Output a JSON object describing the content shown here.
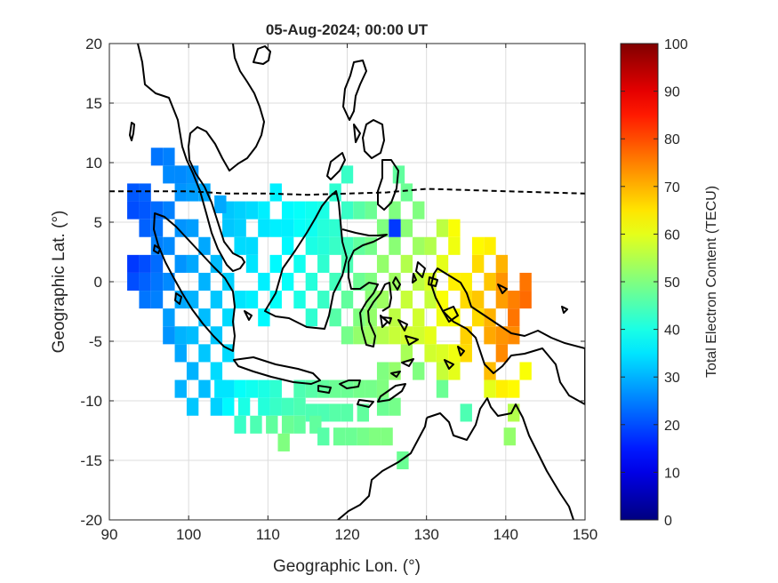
{
  "chart_data": {
    "type": "heatmap",
    "title": "05-Aug-2024; 00:00 UT",
    "xlabel": "Geographic Lon. (°)",
    "ylabel": "Geographic Lat. (°)",
    "xlim": [
      90,
      150
    ],
    "ylim": [
      -20,
      20
    ],
    "xticks": [
      90,
      100,
      110,
      120,
      130,
      140,
      150
    ],
    "yticks": [
      20,
      15,
      10,
      5,
      0,
      -5,
      -10,
      -15,
      -20
    ],
    "grid": true,
    "colorbar": {
      "label": "Total Electron Content (TECU)",
      "range": [
        0,
        100
      ],
      "ticks": [
        0,
        10,
        20,
        30,
        40,
        50,
        60,
        70,
        80,
        90,
        100
      ],
      "colormap": "jet"
    },
    "magnetic_equator": {
      "style": "dashed",
      "points": [
        [
          90,
          7.6
        ],
        [
          100,
          7.6
        ],
        [
          105,
          7.4
        ],
        [
          110,
          7.4
        ],
        [
          115,
          7.3
        ],
        [
          120,
          7.4
        ],
        [
          125,
          7.5
        ],
        [
          130,
          7.8
        ],
        [
          135,
          7.7
        ],
        [
          140,
          7.6
        ],
        [
          145,
          7.5
        ],
        [
          150,
          7.4
        ]
      ]
    },
    "cell_size_deg": [
      1.5,
      1.5
    ],
    "values": [
      [
        93,
        7.5,
        21
      ],
      [
        93,
        6,
        20
      ],
      [
        94.5,
        7.5,
        22
      ],
      [
        94.5,
        6,
        21
      ],
      [
        94.5,
        4.5,
        22
      ],
      [
        96,
        6,
        23
      ],
      [
        96,
        4.5,
        24
      ],
      [
        96,
        3,
        25
      ],
      [
        93,
        1.5,
        18
      ],
      [
        93,
        0,
        20
      ],
      [
        94.5,
        1.5,
        20
      ],
      [
        94.5,
        0,
        22
      ],
      [
        94.5,
        -1.5,
        24
      ],
      [
        96,
        1.5,
        23
      ],
      [
        96,
        0,
        24
      ],
      [
        96,
        -1.5,
        25
      ],
      [
        96,
        10.5,
        24
      ],
      [
        97.5,
        10.5,
        25
      ],
      [
        97.5,
        9,
        26
      ],
      [
        99,
        9,
        26
      ],
      [
        99,
        7.5,
        27
      ],
      [
        100.5,
        9,
        27
      ],
      [
        100.5,
        7.5,
        28
      ],
      [
        102,
        7.5,
        29
      ],
      [
        97.5,
        6,
        25
      ],
      [
        97.5,
        3,
        26
      ],
      [
        97.5,
        0,
        26
      ],
      [
        97.5,
        -3,
        28
      ],
      [
        99,
        4.5,
        27
      ],
      [
        99,
        1.5,
        27
      ],
      [
        99,
        -1.5,
        29
      ],
      [
        99,
        -4.5,
        30
      ],
      [
        100.5,
        4.5,
        28
      ],
      [
        100.5,
        1.5,
        29
      ],
      [
        100.5,
        -1.5,
        30
      ],
      [
        100.5,
        -4.5,
        31
      ],
      [
        102,
        3,
        29
      ],
      [
        102,
        0,
        30
      ],
      [
        102,
        -3,
        31
      ],
      [
        102,
        -6,
        32
      ],
      [
        103.5,
        1.5,
        31
      ],
      [
        103.5,
        -1.5,
        32
      ],
      [
        103.5,
        -4.5,
        32
      ],
      [
        103.5,
        -7.5,
        34
      ],
      [
        105,
        0,
        33
      ],
      [
        105,
        -3,
        34
      ],
      [
        105,
        -6,
        34
      ],
      [
        105,
        -9,
        35
      ],
      [
        97.5,
        -4.5,
        27
      ],
      [
        99,
        -6,
        29
      ],
      [
        100.5,
        -7.5,
        30
      ],
      [
        102,
        -9,
        31
      ],
      [
        103.5,
        -10.5,
        33
      ],
      [
        100.5,
        -10.5,
        32
      ],
      [
        99,
        -9,
        30
      ],
      [
        106.5,
        -1.5,
        35
      ],
      [
        108,
        -1.5,
        36
      ],
      [
        108,
        1.5,
        35
      ],
      [
        109.5,
        0,
        36
      ],
      [
        109.5,
        -3,
        37
      ],
      [
        111,
        1.5,
        37
      ],
      [
        111,
        -1.5,
        38
      ],
      [
        112.5,
        0,
        38
      ],
      [
        106.5,
        -9,
        38
      ],
      [
        108,
        -9,
        39
      ],
      [
        109.5,
        -9,
        40
      ],
      [
        109.5,
        -10.5,
        41
      ],
      [
        111,
        -9,
        42
      ],
      [
        111,
        -10.5,
        43
      ],
      [
        112.5,
        -10.5,
        44
      ],
      [
        114,
        -10.5,
        45
      ],
      [
        106.5,
        6,
        33
      ],
      [
        108,
        6,
        34
      ],
      [
        106.5,
        3,
        34
      ],
      [
        109.5,
        6,
        36
      ],
      [
        111,
        4.5,
        36
      ],
      [
        112.5,
        3,
        37
      ],
      [
        111,
        7.5,
        36
      ],
      [
        112.5,
        6,
        37
      ],
      [
        114,
        1.5,
        39
      ],
      [
        114,
        -1.5,
        40
      ],
      [
        114,
        4.5,
        38
      ],
      [
        115.5,
        3,
        40
      ],
      [
        115.5,
        0,
        41
      ],
      [
        115.5,
        -3,
        42
      ],
      [
        117,
        1.5,
        42
      ],
      [
        117,
        -1.5,
        43
      ],
      [
        114,
        -9,
        45
      ],
      [
        115.5,
        -9,
        46
      ],
      [
        117,
        -9,
        47
      ],
      [
        118.5,
        -9,
        48
      ],
      [
        120,
        -9,
        48
      ],
      [
        121.5,
        -9,
        49
      ],
      [
        123,
        -9,
        49
      ],
      [
        124.5,
        -9,
        50
      ],
      [
        117,
        4.5,
        41
      ],
      [
        118.5,
        3,
        43
      ],
      [
        118.5,
        0,
        44
      ],
      [
        118.5,
        -3,
        46
      ],
      [
        120,
        6,
        43
      ],
      [
        120,
        1.5,
        45
      ],
      [
        120,
        -1.5,
        47
      ],
      [
        120,
        -4.5,
        49
      ],
      [
        118.5,
        7.5,
        42
      ],
      [
        120,
        9,
        43
      ],
      [
        121.5,
        6,
        46
      ],
      [
        121.5,
        3,
        47
      ],
      [
        121.5,
        0,
        48
      ],
      [
        121.5,
        -3,
        50
      ],
      [
        121.5,
        -4.5,
        52
      ],
      [
        123,
        -4.5,
        53
      ],
      [
        123,
        6,
        48
      ],
      [
        123,
        3,
        49
      ],
      [
        123,
        0,
        50
      ],
      [
        123,
        -1.5,
        51
      ],
      [
        124.5,
        4.5,
        50
      ],
      [
        124.5,
        1.5,
        52
      ],
      [
        124.5,
        -1.5,
        53
      ],
      [
        124.5,
        -4.5,
        55
      ],
      [
        126,
        6,
        50
      ],
      [
        126,
        3,
        51
      ],
      [
        126,
        0,
        53
      ],
      [
        126,
        -3,
        56
      ],
      [
        127.5,
        4.5,
        51
      ],
      [
        127.5,
        1.5,
        55
      ],
      [
        127.5,
        -1.5,
        57
      ],
      [
        127.5,
        -4.5,
        58
      ],
      [
        126,
        4.5,
        18
      ],
      [
        126.5,
        9,
        47
      ],
      [
        127.5,
        7.5,
        48
      ],
      [
        129,
        6,
        50
      ],
      [
        129,
        3,
        53
      ],
      [
        129,
        0,
        56
      ],
      [
        129,
        -3,
        58
      ],
      [
        130.5,
        3,
        55
      ],
      [
        130.5,
        0,
        59
      ],
      [
        130.5,
        -1.5,
        57
      ],
      [
        130.5,
        -4.5,
        60
      ],
      [
        132,
        4.5,
        56
      ],
      [
        132,
        1.5,
        60
      ],
      [
        132,
        -1.5,
        62
      ],
      [
        132,
        -3,
        61
      ],
      [
        133.5,
        0,
        64
      ],
      [
        133.5,
        -3,
        62
      ],
      [
        133.5,
        3,
        61
      ],
      [
        133.5,
        4.5,
        62
      ],
      [
        135,
        0,
        64
      ],
      [
        135,
        -1.5,
        66
      ],
      [
        135,
        -4.5,
        67
      ],
      [
        135,
        -6,
        66
      ],
      [
        136.5,
        -1.5,
        68
      ],
      [
        136.5,
        -3,
        66
      ],
      [
        136.5,
        3,
        63
      ],
      [
        136.5,
        1.5,
        66
      ],
      [
        138,
        0,
        68
      ],
      [
        138,
        -3,
        70
      ],
      [
        138,
        -4.5,
        71
      ],
      [
        138,
        -7.5,
        69
      ],
      [
        139.5,
        0,
        73
      ],
      [
        139.5,
        -1.5,
        72
      ],
      [
        139.5,
        -4.5,
        73
      ],
      [
        139.5,
        -6,
        74
      ],
      [
        141,
        -1.5,
        75
      ],
      [
        141,
        -3,
        76
      ],
      [
        141,
        -4.5,
        74
      ],
      [
        142.5,
        0,
        76
      ],
      [
        142.5,
        -1.5,
        77
      ],
      [
        138,
        3,
        64
      ],
      [
        139.5,
        1.5,
        70
      ],
      [
        139.5,
        -9,
        64
      ],
      [
        141,
        -9,
        63
      ],
      [
        138,
        -9,
        60
      ],
      [
        142.5,
        -7.5,
        62
      ],
      [
        141,
        -11,
        55
      ],
      [
        140.5,
        -13,
        52
      ],
      [
        135,
        -11,
        45
      ],
      [
        132,
        -9,
        48
      ],
      [
        129,
        -7.5,
        50
      ],
      [
        127.5,
        -6,
        54
      ],
      [
        126,
        -7.5,
        52
      ],
      [
        124.5,
        -7.5,
        50
      ],
      [
        126,
        -10.5,
        49
      ],
      [
        124.5,
        -10.5,
        48
      ],
      [
        122,
        -11,
        47
      ],
      [
        120,
        -11,
        46
      ],
      [
        118.5,
        -11,
        46
      ],
      [
        117,
        -11,
        45
      ],
      [
        115.5,
        -11,
        45
      ],
      [
        114,
        -12,
        47
      ],
      [
        112.5,
        -12,
        48
      ],
      [
        116,
        -12,
        47
      ],
      [
        117,
        -13,
        46
      ],
      [
        119,
        -13,
        48
      ],
      [
        120.5,
        -13,
        48
      ],
      [
        122,
        -13,
        49
      ],
      [
        123.5,
        -13,
        50
      ],
      [
        125,
        -13,
        50
      ],
      [
        127,
        -15,
        48
      ],
      [
        107,
        -10.5,
        40
      ],
      [
        105,
        -10.5,
        37
      ],
      [
        104,
        -9,
        35
      ],
      [
        106.5,
        -12,
        43
      ],
      [
        108.5,
        -12,
        45
      ],
      [
        110.5,
        -12,
        47
      ],
      [
        112,
        -13.5,
        50
      ],
      [
        130.5,
        -6,
        58
      ],
      [
        132,
        -6,
        59
      ],
      [
        133.5,
        -6,
        61
      ],
      [
        133.5,
        -7.5,
        60
      ],
      [
        132,
        -7.5,
        57
      ],
      [
        129,
        -4.5,
        58
      ],
      [
        126,
        -4.5,
        57
      ],
      [
        123,
        -3,
        52
      ],
      [
        120,
        3,
        44
      ],
      [
        118.5,
        4.5,
        42
      ],
      [
        117,
        6,
        40
      ],
      [
        117,
        3,
        41
      ],
      [
        115.5,
        6,
        39
      ],
      [
        114,
        6,
        38
      ],
      [
        115.5,
        4.5,
        39
      ],
      [
        112.5,
        4.5,
        36
      ],
      [
        109.5,
        4.5,
        35
      ],
      [
        108,
        3,
        34
      ],
      [
        106.5,
        4.5,
        33
      ],
      [
        105,
        6,
        32
      ],
      [
        105,
        4.5,
        32
      ],
      [
        104,
        6.5,
        29
      ]
    ]
  }
}
